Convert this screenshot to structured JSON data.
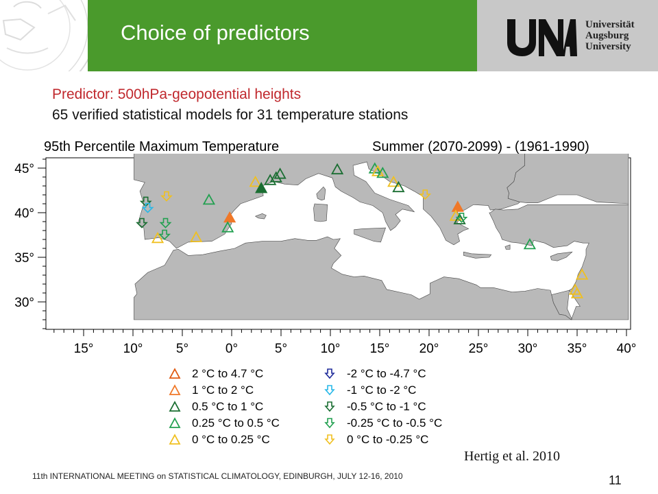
{
  "slide": {
    "title": "Choice of predictors",
    "subtitle_predictor": "Predictor: 500hPa-geopotential heights",
    "subtitle_models": "65 verified statistical models for 31 temperature stations",
    "citation": "Hertig et al. 2010",
    "footer": "11th INTERNATIONAL MEETING on STATISTICAL CLIMATOLOGY, EDINBURGH, JULY 12-16, 2010",
    "page_number": "11"
  },
  "logo": {
    "line1": "Universität",
    "line2": "Augsburg",
    "line3": "University"
  },
  "map": {
    "title_left": "95th Percentile Maximum Temperature",
    "title_right": "Summer (2070-2099) - (1961-1990)",
    "lon_ticks": [
      {
        "v": 15,
        "label": "15°",
        "west": true
      },
      {
        "v": 10,
        "label": "10°",
        "west": true
      },
      {
        "v": 5,
        "label": "5°",
        "west": true
      },
      {
        "v": 0,
        "label": "0°",
        "west": false
      },
      {
        "v": 5,
        "label": "5°",
        "west": false
      },
      {
        "v": 10,
        "label": "10°",
        "west": false
      },
      {
        "v": 15,
        "label": "15°",
        "west": false
      },
      {
        "v": 20,
        "label": "20°",
        "west": false
      },
      {
        "v": 25,
        "label": "25°",
        "west": false
      },
      {
        "v": 30,
        "label": "30°",
        "west": false
      },
      {
        "v": 35,
        "label": "35°",
        "west": false
      },
      {
        "v": 40,
        "label": "40°",
        "west": false
      }
    ],
    "lat_ticks": [
      {
        "v": 45,
        "label": "45°"
      },
      {
        "v": 40,
        "label": "40°"
      },
      {
        "v": 35,
        "label": "35°"
      },
      {
        "v": 30,
        "label": "30°"
      }
    ],
    "colors": {
      "land": "#b9b9b9",
      "sea": "#ffffff",
      "c_2_47": "#e05a12",
      "c_1_2": "#f07828",
      "c_05_1": "#1a6e32",
      "c_025_05": "#22a050",
      "c_0_025": "#f0c020",
      "c_m2_m47": "#1e2a9a",
      "c_m1_m2": "#28b8e8",
      "c_m05_m1": "#1a6e32",
      "c_m025_m05": "#22a050",
      "c_m0_m025": "#f0c020"
    },
    "stations": [
      {
        "lon": 2.4,
        "lat": 43.4,
        "cls": "c_0_025"
      },
      {
        "lon": 3.0,
        "lat": 42.7,
        "cls": "c_05_1",
        "filled": true
      },
      {
        "lon": 3.9,
        "lat": 43.6,
        "cls": "c_05_1"
      },
      {
        "lon": 4.5,
        "lat": 43.9,
        "cls": "c_05_1"
      },
      {
        "lon": 4.9,
        "lat": 44.3,
        "cls": "c_05_1"
      },
      {
        "lon": -2.3,
        "lat": 41.4,
        "cls": "c_025_05"
      },
      {
        "lon": -0.2,
        "lat": 39.4,
        "cls": "c_1_2",
        "filled": true
      },
      {
        "lon": -0.4,
        "lat": 38.3,
        "cls": "c_025_05"
      },
      {
        "lon": -3.6,
        "lat": 37.2,
        "cls": "c_0_025"
      },
      {
        "lon": -7.5,
        "lat": 37.1,
        "cls": "c_0_025"
      },
      {
        "lon": 10.7,
        "lat": 44.8,
        "cls": "c_05_1"
      },
      {
        "lon": 14.5,
        "lat": 44.9,
        "cls": "c_025_05"
      },
      {
        "lon": 14.8,
        "lat": 44.6,
        "cls": "c_0_025"
      },
      {
        "lon": 15.3,
        "lat": 44.4,
        "cls": "c_025_05"
      },
      {
        "lon": 16.4,
        "lat": 43.4,
        "cls": "c_0_025"
      },
      {
        "lon": 16.9,
        "lat": 42.8,
        "cls": "c_05_1"
      },
      {
        "lon": 22.9,
        "lat": 40.6,
        "cls": "c_1_2",
        "filled": true
      },
      {
        "lon": 22.7,
        "lat": 39.6,
        "cls": "c_0_025"
      },
      {
        "lon": 23.1,
        "lat": 39.2,
        "cls": "c_05_1"
      },
      {
        "lon": 30.2,
        "lat": 36.4,
        "cls": "c_025_05"
      },
      {
        "lon": 35.5,
        "lat": 33.0,
        "cls": "c_0_025"
      },
      {
        "lon": 34.8,
        "lat": 31.3,
        "cls": "c_0_025"
      },
      {
        "lon": 35.0,
        "lat": 30.9,
        "cls": "c_0_025"
      }
    ],
    "arrow_stations": [
      {
        "lon": -8.7,
        "lat": 41.2,
        "cls": "c_m05_m1"
      },
      {
        "lon": -8.5,
        "lat": 40.5,
        "cls": "c_m1_m2"
      },
      {
        "lon": -6.6,
        "lat": 41.8,
        "cls": "c_m0_m025"
      },
      {
        "lon": -9.1,
        "lat": 38.8,
        "cls": "c_m05_m1"
      },
      {
        "lon": -6.7,
        "lat": 38.8,
        "cls": "c_m025_m05"
      },
      {
        "lon": -6.8,
        "lat": 37.5,
        "cls": "c_m025_m05"
      },
      {
        "lon": 19.6,
        "lat": 42.0,
        "cls": "c_m0_m025"
      },
      {
        "lon": 23.3,
        "lat": 39.4,
        "cls": "c_m025_m05"
      }
    ]
  },
  "legend": {
    "items_up": [
      {
        "label": "2 °C  to  4.7 °C",
        "cls": "c_2_47"
      },
      {
        "label": "1 °C  to  2 °C",
        "cls": "c_1_2"
      },
      {
        "label": "0.5 °C  to  1 °C",
        "cls": "c_05_1"
      },
      {
        "label": "0.25 °C  to  0.5 °C",
        "cls": "c_025_05"
      },
      {
        "label": "0 °C  to  0.25 °C",
        "cls": "c_0_025"
      }
    ],
    "items_down": [
      {
        "label": "-2 °C  to  -4.7 °C",
        "cls": "c_m2_m47"
      },
      {
        "label": "-1 °C  to  -2 °C",
        "cls": "c_m1_m2"
      },
      {
        "label": "-0.5 °C  to  -1 °C",
        "cls": "c_m05_m1"
      },
      {
        "label": "-0.25 °C  to  -0.5 °C",
        "cls": "c_m025_m05"
      },
      {
        "label": "0 °C  to  -0.25 °C",
        "cls": "c_m0_m025"
      }
    ]
  }
}
